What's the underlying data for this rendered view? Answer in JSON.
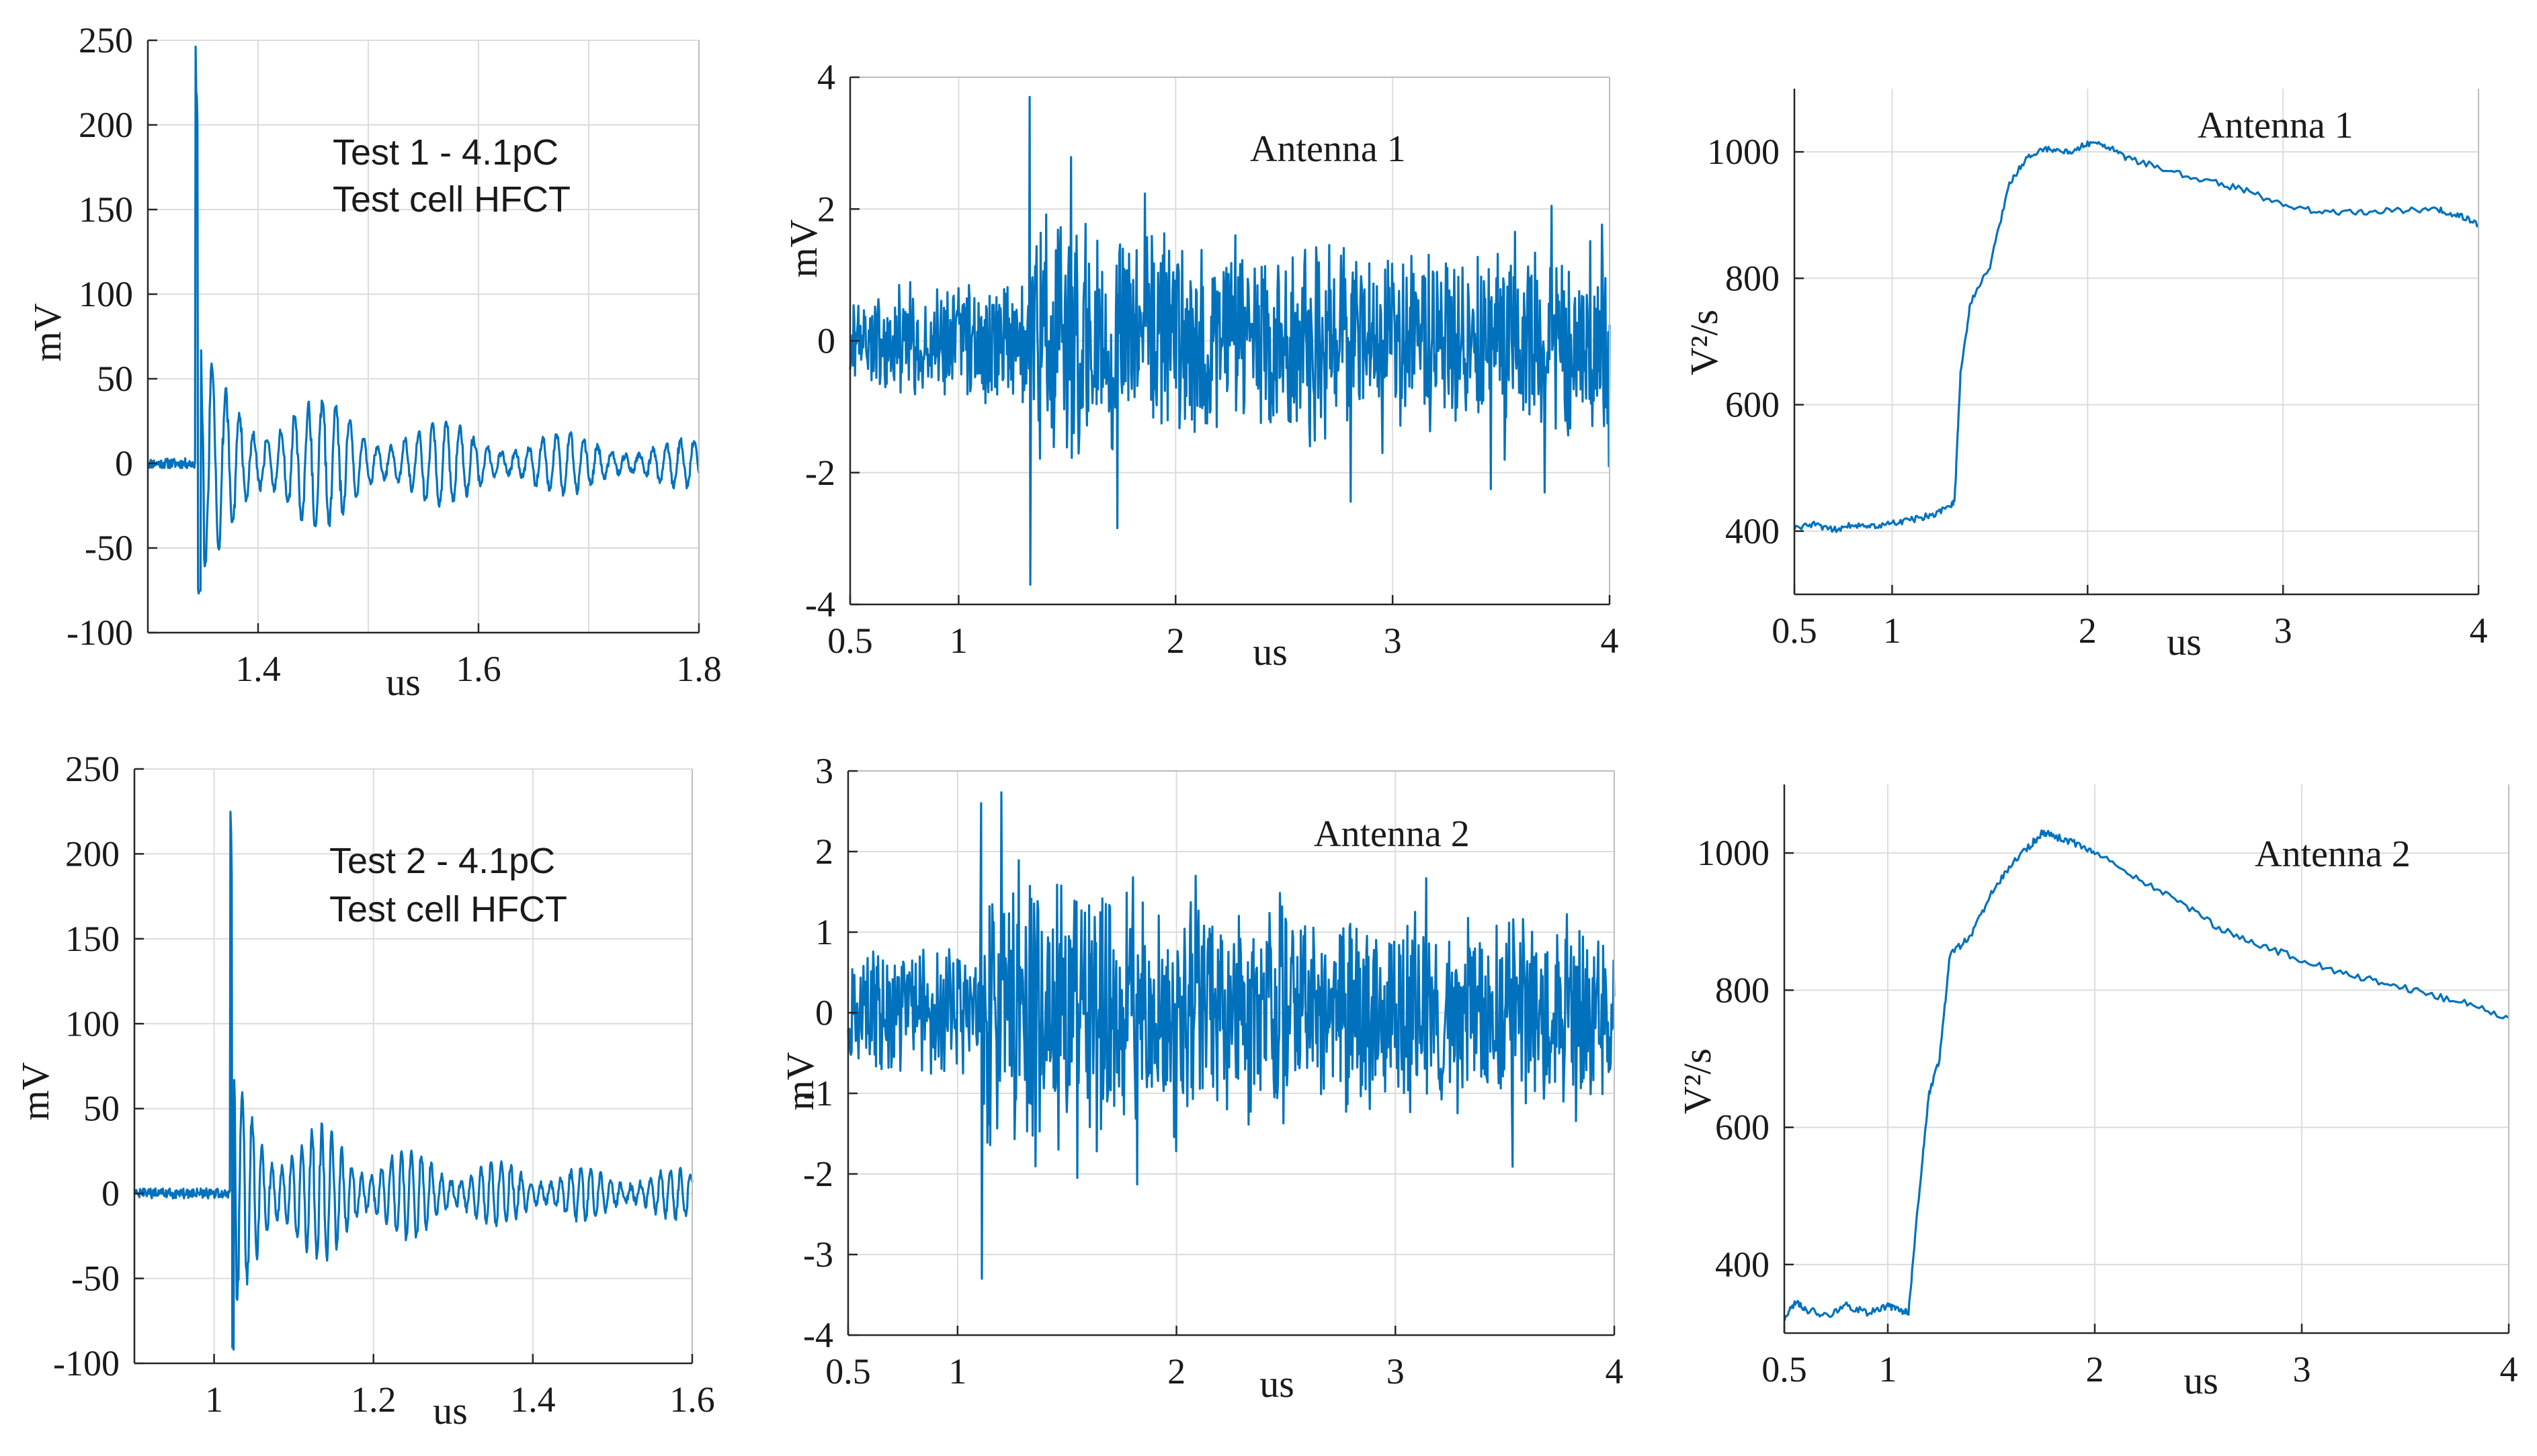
{
  "chart_data": [
    {
      "id": "p1",
      "type": "line",
      "panel": "top-left",
      "signal": "burst",
      "title": "",
      "annotations": [
        "Test 1 - 4.1pC",
        "Test cell HFCT"
      ],
      "xlabel": "us",
      "ylabel": "mV",
      "xlim": [
        1.3,
        1.8
      ],
      "ylim": [
        -100,
        250
      ],
      "xticks": [
        1.4,
        1.6,
        1.8
      ],
      "xtick_labels": [
        "1.4",
        "1.6",
        "1.8"
      ],
      "yticks": [
        -100,
        -50,
        0,
        50,
        100,
        150,
        200,
        250
      ],
      "ytick_labels": [
        "-100",
        "-50",
        "0",
        "50",
        "100",
        "150",
        "200",
        "250"
      ],
      "xgrid": [
        1.4,
        1.5,
        1.6,
        1.7,
        1.8
      ],
      "grid": true,
      "color": "#0072bd",
      "onset": 1.343,
      "peak": 243,
      "trough": -75,
      "decay_to": 10,
      "noise_before": 3
    },
    {
      "id": "p2",
      "type": "line",
      "panel": "top-middle",
      "signal": "noise",
      "title": "",
      "annotations": [
        "Antenna 1"
      ],
      "xlabel": "us",
      "ylabel": "mV",
      "xlim": [
        0.5,
        4
      ],
      "ylim": [
        -4,
        4
      ],
      "xticks": [
        0.5,
        1,
        2,
        3,
        4
      ],
      "xtick_labels": [
        "0.5",
        "1",
        "2",
        "3",
        "4"
      ],
      "yticks": [
        -4,
        -2,
        0,
        2,
        4
      ],
      "ytick_labels": [
        "-4",
        "-2",
        "0",
        "2",
        "4"
      ],
      "xgrid": [
        1,
        2,
        3,
        4
      ],
      "grid": true,
      "color": "#0072bd",
      "onset": 1.32,
      "peak": 3.7,
      "trough": -3.7,
      "amp_before": 0.9,
      "amp_after": 1.6
    },
    {
      "id": "p3",
      "type": "line",
      "panel": "top-right",
      "signal": "energy",
      "title": "",
      "annotations": [
        "Antenna 1"
      ],
      "xlabel": "us",
      "ylabel": "V²/s",
      "xlim": [
        0.5,
        4
      ],
      "ylim": [
        300,
        1100
      ],
      "xticks": [
        0.5,
        1,
        2,
        3,
        4
      ],
      "xtick_labels": [
        "0.5",
        "1",
        "2",
        "3",
        "4"
      ],
      "yticks": [
        400,
        600,
        800,
        1000
      ],
      "ytick_labels": [
        "400",
        "600",
        "800",
        "1000"
      ],
      "xgrid": [
        1,
        2,
        3,
        4
      ],
      "grid": true,
      "color": "#0072bd",
      "x": [
        0.5,
        0.6,
        0.7,
        0.8,
        0.9,
        1.0,
        1.1,
        1.2,
        1.3,
        1.32,
        1.35,
        1.4,
        1.5,
        1.6,
        1.7,
        1.8,
        1.9,
        2.0,
        2.1,
        2.2,
        2.4,
        2.6,
        2.8,
        3.0,
        3.2,
        3.4,
        3.6,
        3.8,
        3.9,
        4.0
      ],
      "values": [
        405,
        410,
        402,
        410,
        408,
        412,
        418,
        425,
        440,
        450,
        650,
        760,
        820,
        950,
        995,
        1005,
        1000,
        1012,
        1010,
        990,
        972,
        955,
        940,
        915,
        905,
        905,
        908,
        908,
        900,
        885
      ]
    },
    {
      "id": "p4",
      "type": "line",
      "panel": "bottom-left",
      "signal": "burst",
      "title": "",
      "annotations": [
        "Test 2 - 4.1pC",
        "Test cell HFCT"
      ],
      "xlabel": "us",
      "ylabel": "mV",
      "xlim": [
        0.9,
        1.6
      ],
      "ylim": [
        -100,
        250
      ],
      "xticks": [
        1,
        1.2,
        1.4,
        1.6
      ],
      "xtick_labels": [
        "1",
        "1.2",
        "1.4",
        "1.6"
      ],
      "yticks": [
        -100,
        -50,
        0,
        50,
        100,
        150,
        200,
        250
      ],
      "ytick_labels": [
        "-100",
        "-50",
        "0",
        "50",
        "100",
        "150",
        "200",
        "250"
      ],
      "xgrid": [
        1.0,
        1.2,
        1.4,
        1.6
      ],
      "grid": true,
      "color": "#0072bd",
      "onset": 1.02,
      "peak": 228,
      "trough": -90,
      "decay_to": 12,
      "noise_before": 3
    },
    {
      "id": "p5",
      "type": "line",
      "panel": "bottom-middle",
      "signal": "noise",
      "title": "",
      "annotations": [
        "Antenna 2"
      ],
      "xlabel": "us",
      "ylabel": "mV",
      "xlim": [
        0.5,
        4
      ],
      "ylim": [
        -4,
        3
      ],
      "xticks": [
        0.5,
        1,
        2,
        3,
        4
      ],
      "xtick_labels": [
        "0.5",
        "1",
        "2",
        "3",
        "4"
      ],
      "yticks": [
        -4,
        -3,
        -2,
        -1,
        0,
        1,
        2,
        3
      ],
      "ytick_labels": [
        "-4",
        "-3",
        "-2",
        "-1",
        "0",
        "1",
        "2",
        "3"
      ],
      "xgrid": [
        1,
        2,
        3,
        4
      ],
      "grid": true,
      "color": "#0072bd",
      "onset": 1.1,
      "peak": 2.6,
      "trough": -3.3,
      "amp_before": 0.8,
      "amp_after": 1.4
    },
    {
      "id": "p6",
      "type": "line",
      "panel": "bottom-right",
      "signal": "energy",
      "title": "",
      "annotations": [
        "Antenna 2"
      ],
      "xlabel": "us",
      "ylabel": "V²/s",
      "xlim": [
        0.5,
        4
      ],
      "ylim": [
        300,
        1100
      ],
      "xticks": [
        0.5,
        1,
        2,
        3,
        4
      ],
      "xtick_labels": [
        "0.5",
        "1",
        "2",
        "3",
        "4"
      ],
      "yticks": [
        400,
        600,
        800,
        1000
      ],
      "ytick_labels": [
        "400",
        "600",
        "800",
        "1000"
      ],
      "xgrid": [
        1,
        2,
        3,
        4
      ],
      "grid": true,
      "color": "#0072bd",
      "x": [
        0.5,
        0.55,
        0.6,
        0.7,
        0.8,
        0.9,
        1.0,
        1.05,
        1.1,
        1.15,
        1.2,
        1.25,
        1.3,
        1.4,
        1.5,
        1.6,
        1.7,
        1.75,
        1.8,
        1.9,
        2.0,
        2.2,
        2.4,
        2.6,
        2.8,
        3.0,
        3.2,
        3.4,
        3.6,
        3.8,
        4.0
      ],
      "values": [
        320,
        345,
        335,
        325,
        340,
        330,
        340,
        335,
        330,
        500,
        650,
        700,
        850,
        880,
        940,
        985,
        1015,
        1030,
        1025,
        1015,
        1000,
        965,
        930,
        890,
        865,
        845,
        825,
        810,
        795,
        780,
        760
      ]
    }
  ]
}
